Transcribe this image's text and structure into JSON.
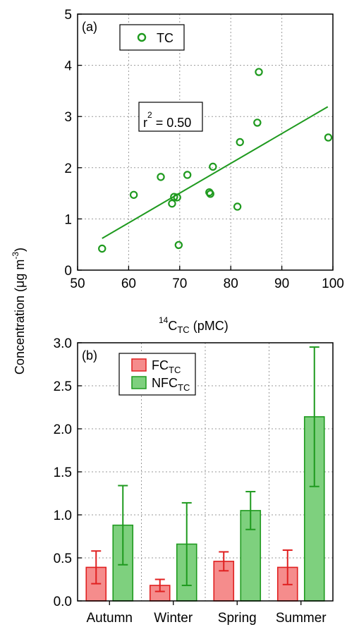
{
  "y_axis_label": {
    "main": "Concentration (μg m",
    "exp": "-3",
    "end": ")"
  },
  "chart_data": [
    {
      "type": "scatter",
      "panel_label": "(a)",
      "xlim": [
        50,
        100
      ],
      "ylim": [
        0,
        5
      ],
      "xticks": [
        50,
        60,
        70,
        80,
        90,
        100
      ],
      "yticks": [
        0,
        1,
        2,
        3,
        4,
        5
      ],
      "grid": true,
      "xlabel": {
        "sup": "14",
        "base": "C",
        "sub": "TC",
        "unit": " (pMC)"
      },
      "legend": {
        "placement": "top-left",
        "entries": [
          "TC"
        ]
      },
      "series": [
        {
          "name": "TC",
          "color": "#1f9a1f",
          "marker": "open-circle",
          "points": [
            [
              54.8,
              0.42
            ],
            [
              61.0,
              1.47
            ],
            [
              66.3,
              1.82
            ],
            [
              68.5,
              1.3
            ],
            [
              68.9,
              1.43
            ],
            [
              69.5,
              1.42
            ],
            [
              69.8,
              0.49
            ],
            [
              71.5,
              1.86
            ],
            [
              76.5,
              2.02
            ],
            [
              75.8,
              1.52
            ],
            [
              76.0,
              1.49
            ],
            [
              81.3,
              1.24
            ],
            [
              81.8,
              2.5
            ],
            [
              85.2,
              2.88
            ],
            [
              85.5,
              3.87
            ],
            [
              99.1,
              2.59
            ]
          ]
        }
      ],
      "fit_line": {
        "x": [
          54.8,
          99.0
        ],
        "y": [
          0.62,
          3.19
        ]
      },
      "annotation": {
        "base": "r",
        "sup": "2",
        "rest": " = 0.50"
      }
    },
    {
      "type": "bar",
      "panel_label": "(b)",
      "categories": [
        "Autumn",
        "Winter",
        "Spring",
        "Summer"
      ],
      "ylim": [
        0,
        3.0
      ],
      "yticks": [
        "0.0",
        "0.5",
        "1.0",
        "1.5",
        "2.0",
        "2.5",
        "3.0"
      ],
      "grid": true,
      "legend": {
        "placement": "top-left"
      },
      "series": [
        {
          "name": {
            "base": "FC",
            "sub": "TC"
          },
          "fill": "#f58c8c",
          "stroke": "#e02020",
          "values": [
            0.39,
            0.18,
            0.46,
            0.39
          ],
          "errors": [
            0.19,
            0.07,
            0.11,
            0.2
          ]
        },
        {
          "name": {
            "base": "NFC",
            "sub": "TC"
          },
          "fill": "#7ed07e",
          "stroke": "#1f9a1f",
          "values": [
            0.88,
            0.66,
            1.05,
            2.14
          ],
          "errors": [
            0.46,
            0.48,
            0.22,
            0.81
          ]
        }
      ]
    }
  ]
}
